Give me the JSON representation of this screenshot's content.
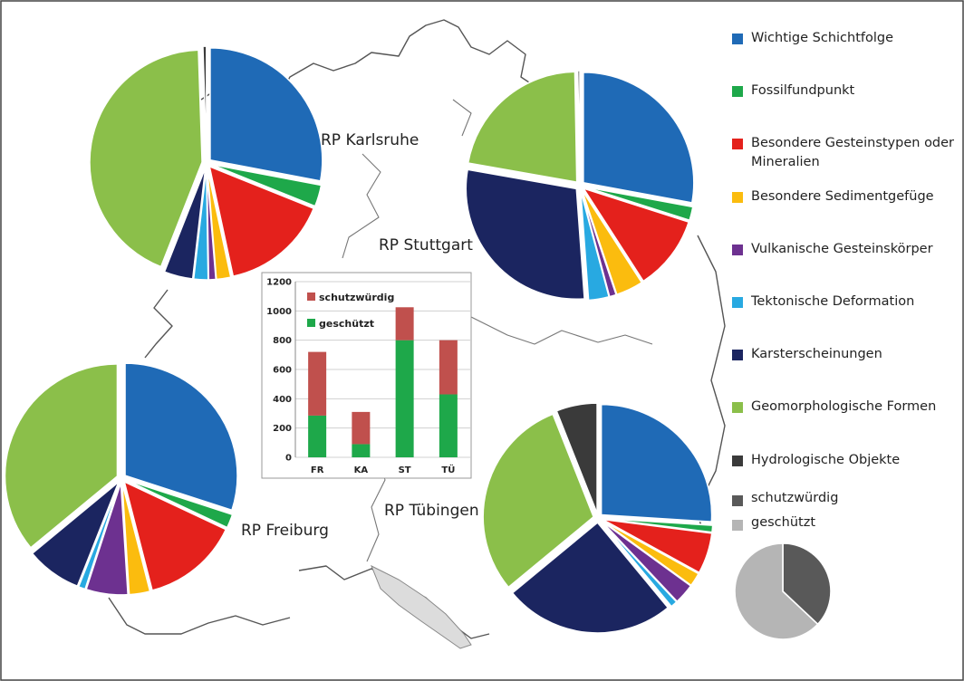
{
  "categories": [
    {
      "key": "schichtfolge",
      "label": "Wichtige Schichtfolge",
      "color": "#1f6ab6"
    },
    {
      "key": "fossil",
      "label": "Fossilfundpunkt",
      "color": "#1ea84a"
    },
    {
      "key": "gestein",
      "label": "Besondere Gesteinstypen oder Mineralien",
      "color": "#e4211c"
    },
    {
      "key": "sediment",
      "label": "Besondere Sedimentgefüge",
      "color": "#fbbc0e"
    },
    {
      "key": "vulkan",
      "label": "Vulkanische Gesteinskörper",
      "color": "#6d3190"
    },
    {
      "key": "tekton",
      "label": "Tektonische Deformation",
      "color": "#28a9e1"
    },
    {
      "key": "karst",
      "label": "Karsterscheinungen",
      "color": "#1b2560"
    },
    {
      "key": "geomorph",
      "label": "Geomorphologische Formen",
      "color": "#8bbf4a"
    },
    {
      "key": "hydro",
      "label": "Hydrologische Objekte",
      "color": "#3a3a3a"
    }
  ],
  "status_legend": [
    {
      "key": "schutz",
      "label": "schutzwürdig",
      "color": "#595959"
    },
    {
      "key": "geschuetzt",
      "label": "geschützt",
      "color": "#b5b5b5"
    }
  ],
  "regions": {
    "karlsruhe": {
      "label": "RP Karlsruhe",
      "slices": [
        {
          "cat": "schichtfolge",
          "value": 27
        },
        {
          "cat": "fossil",
          "value": 3
        },
        {
          "cat": "gestein",
          "value": 15
        },
        {
          "cat": "sediment",
          "value": 2
        },
        {
          "cat": "vulkan",
          "value": 1
        },
        {
          "cat": "tekton",
          "value": 2
        },
        {
          "cat": "karst",
          "value": 4
        },
        {
          "cat": "geomorph",
          "value": 42
        },
        {
          "cat": "hydro",
          "value": 0.5
        }
      ]
    },
    "stuttgart": {
      "label": "RP Stuttgart",
      "slices": [
        {
          "cat": "schichtfolge",
          "value": 28
        },
        {
          "cat": "fossil",
          "value": 2
        },
        {
          "cat": "gestein",
          "value": 11
        },
        {
          "cat": "sediment",
          "value": 4
        },
        {
          "cat": "vulkan",
          "value": 1
        },
        {
          "cat": "tekton",
          "value": 3
        },
        {
          "cat": "karst",
          "value": 29
        },
        {
          "cat": "geomorph",
          "value": 22
        },
        {
          "cat": "hydro",
          "value": 0.3
        }
      ]
    },
    "freiburg": {
      "label": "RP Freiburg",
      "slices": [
        {
          "cat": "schichtfolge",
          "value": 30
        },
        {
          "cat": "fossil",
          "value": 2
        },
        {
          "cat": "gestein",
          "value": 14
        },
        {
          "cat": "sediment",
          "value": 3
        },
        {
          "cat": "vulkan",
          "value": 6
        },
        {
          "cat": "tekton",
          "value": 1
        },
        {
          "cat": "karst",
          "value": 8
        },
        {
          "cat": "geomorph",
          "value": 36
        },
        {
          "cat": "hydro",
          "value": 0
        }
      ]
    },
    "tuebingen": {
      "label": "RP Tübingen",
      "slices": [
        {
          "cat": "schichtfolge",
          "value": 26
        },
        {
          "cat": "fossil",
          "value": 1
        },
        {
          "cat": "gestein",
          "value": 6
        },
        {
          "cat": "sediment",
          "value": 2
        },
        {
          "cat": "vulkan",
          "value": 3
        },
        {
          "cat": "tekton",
          "value": 1
        },
        {
          "cat": "karst",
          "value": 25
        },
        {
          "cat": "geomorph",
          "value": 30
        },
        {
          "cat": "hydro",
          "value": 6
        }
      ]
    }
  },
  "status_pie": {
    "schutz": 37,
    "geschuetzt": 63
  },
  "chart_data": {
    "type": "bar",
    "stacked": true,
    "categories": [
      "FR",
      "KA",
      "ST",
      "TÜ"
    ],
    "series": [
      {
        "name": "geschützt",
        "values": [
          285,
          90,
          800,
          430
        ],
        "color": "#1ea84a"
      },
      {
        "name": "schutzwürdig",
        "values": [
          435,
          220,
          225,
          370
        ],
        "color": "#c0504d"
      }
    ],
    "ylim": [
      0,
      1200
    ],
    "yticks": [
      "0",
      "200",
      "400",
      "600",
      "800",
      "1000",
      "1200"
    ],
    "grid": true,
    "legend": "top-left"
  }
}
